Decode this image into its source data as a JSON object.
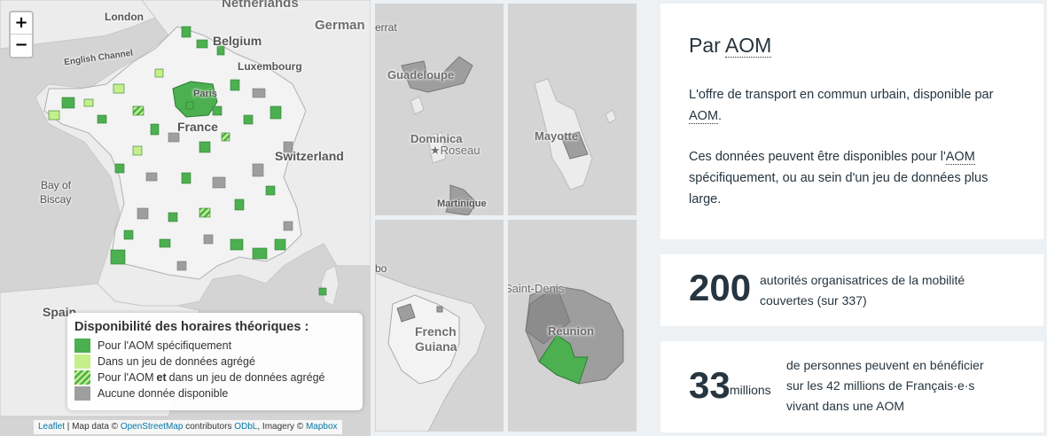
{
  "map": {
    "zoom_in": "+",
    "zoom_out": "−",
    "labels": {
      "netherlands": "Netherlands",
      "london": "London",
      "german": "German",
      "belgium": "Belgium",
      "english_channel": "English Channel",
      "luxembourg": "Luxembourg",
      "paris": "Paris",
      "france": "France",
      "switzerland": "Switzerland",
      "bay_of": "Bay of",
      "biscay": "Biscay",
      "spain": "Spain"
    },
    "attribution": {
      "leaflet": "Leaflet",
      "sep1": " | Map data © ",
      "osm": "OpenStreetMap",
      "contrib": " contributors ",
      "odbl": "ODbL",
      "imagery": ", Imagery © ",
      "mapbox": "Mapbox"
    }
  },
  "legend": {
    "title": "Disponibilité des horaires théoriques :",
    "items": [
      {
        "label": "Pour l'AOM spécifiquement",
        "color": "#4caf50"
      },
      {
        "label": "Dans un jeu de données agrégé",
        "color": "#c5ef8a"
      },
      {
        "label_pre": "Pour l'AOM ",
        "label_bold": "et",
        "label_post": " dans un jeu de données agrégé",
        "color": "#4caf50"
      },
      {
        "label": "Aucune donnée disponible",
        "color": "#9e9e9e"
      }
    ]
  },
  "insets": {
    "guadeloupe": "Guadeloupe",
    "errat": "errat",
    "dominica": "Dominica",
    "roseau": "Roseau",
    "martinique": "Martinique",
    "mayotte": "Mayotte",
    "bo": "bo",
    "french": "French",
    "guiana": "Guiana",
    "saint_denis": "Saint-Denis",
    "reunion": "Réunion"
  },
  "panel1": {
    "title_pre": "Par ",
    "title_abbr": "AOM",
    "p1_pre": "L'offre de transport en commun urbain, disponible par ",
    "p1_abbr": "AOM",
    "p1_post": ".",
    "p2_pre": "Ces données peuvent être disponibles pour l'",
    "p2_abbr": "AOM",
    "p2_post": " spécifiquement, ou au sein d'un jeu de données plus large."
  },
  "stat1": {
    "value": "200",
    "desc_line1": "autorités organisatrices de la mobilité",
    "desc_line2": "couvertes (sur 337)"
  },
  "stat2": {
    "value": "33",
    "unit": "millions",
    "desc_line1": "de personnes peuvent en bénéficier",
    "desc_line2": "sur les 42 millions de Français·e·s",
    "desc_line3": "vivant dans une AOM"
  },
  "colors": {
    "green": "#4caf50",
    "light_green": "#c5ef8a",
    "grey": "#9e9e9e",
    "text_dark": "#26353f"
  }
}
